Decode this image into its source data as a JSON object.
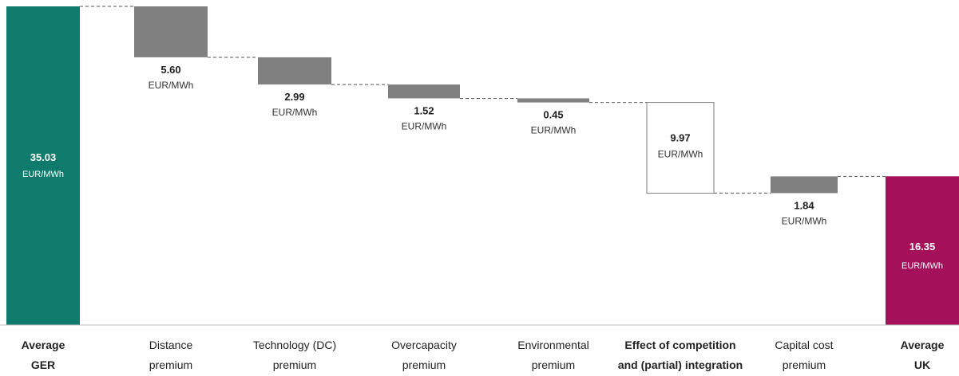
{
  "chart_data": {
    "type": "bar",
    "subtype": "waterfall",
    "unit": "EUR/MWh",
    "grid": false,
    "legend": "none",
    "ylim": [
      0,
      35.03
    ],
    "steps": [
      {
        "label_lines": [
          "Average",
          "GER"
        ],
        "value": 35.03,
        "value_label": "35.03",
        "kind": "total",
        "color": "#0e7b6c",
        "bold_label": true
      },
      {
        "label_lines": [
          "Distance",
          "premium"
        ],
        "value": -5.6,
        "value_label": "5.60",
        "kind": "decrease",
        "color": "#808080",
        "bold_label": false
      },
      {
        "label_lines": [
          "Technology (DC)",
          "premium"
        ],
        "value": -2.99,
        "value_label": "2.99",
        "kind": "decrease",
        "color": "#808080",
        "bold_label": false
      },
      {
        "label_lines": [
          "Overcapacity",
          "premium"
        ],
        "value": -1.52,
        "value_label": "1.52",
        "kind": "decrease",
        "color": "#808080",
        "bold_label": false
      },
      {
        "label_lines": [
          "Environmental",
          "premium"
        ],
        "value": -0.45,
        "value_label": "0.45",
        "kind": "decrease",
        "color": "#808080",
        "bold_label": false
      },
      {
        "label_lines": [
          "Effect of competition",
          "and (partial) integration"
        ],
        "value": -9.97,
        "value_label": "9.97",
        "kind": "decrease",
        "color": "#ffffff",
        "bold_label": true
      },
      {
        "label_lines": [
          "Capital cost",
          "premium"
        ],
        "value": 1.84,
        "value_label": "1.84",
        "kind": "increase",
        "color": "#808080",
        "bold_label": false
      },
      {
        "label_lines": [
          "Average",
          "UK"
        ],
        "value": 16.35,
        "value_label": "16.35",
        "kind": "total",
        "color": "#a5105a",
        "bold_label": true
      }
    ]
  }
}
